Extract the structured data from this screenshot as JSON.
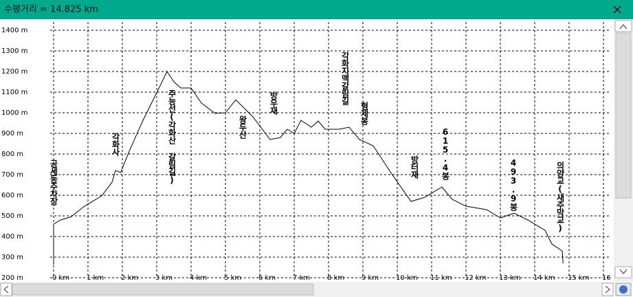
{
  "window": {
    "title": "수평거리 = 14.825 km"
  },
  "chart_data": {
    "type": "line",
    "color": "#000000",
    "grid": true,
    "x": [
      0,
      0.0,
      0.2,
      0.5,
      0.9,
      1.4,
      1.7,
      1.8,
      1.95,
      2.2,
      2.6,
      3.0,
      3.3,
      3.5,
      3.7,
      4.0,
      4.3,
      4.7,
      5.0,
      5.3,
      5.5,
      5.8,
      6.3,
      6.6,
      6.8,
      7.0,
      7.2,
      7.5,
      7.7,
      7.9,
      8.3,
      8.6,
      8.9,
      9.3,
      9.8,
      10.4,
      10.8,
      11.3,
      11.6,
      12.0,
      12.6,
      13.0,
      13.4,
      13.8,
      14.3,
      14.5,
      14.8,
      14.825
    ],
    "values": [
      263,
      460,
      480,
      495,
      547,
      597,
      663,
      720,
      710,
      813,
      963,
      1097,
      1200,
      1150,
      1120,
      1120,
      1047,
      997,
      1000,
      1063,
      1030,
      980,
      870,
      880,
      920,
      900,
      963,
      930,
      960,
      920,
      920,
      930,
      870,
      840,
      713,
      570,
      590,
      640,
      580,
      547,
      530,
      490,
      513,
      480,
      430,
      363,
      330,
      270
    ],
    "xlim": [
      -0.1,
      16.2
    ],
    "ylim": [
      200,
      1440
    ],
    "xticks": [
      {
        "value": 0,
        "label": "0 km"
      },
      {
        "value": 1,
        "label": "1 km"
      },
      {
        "value": 2,
        "label": "2 km"
      },
      {
        "value": 3,
        "label": "3 km"
      },
      {
        "value": 4,
        "label": "4 km"
      },
      {
        "value": 5,
        "label": "5 km"
      },
      {
        "value": 6,
        "label": "6 km"
      },
      {
        "value": 7,
        "label": "7 km"
      },
      {
        "value": 8,
        "label": "8 km"
      },
      {
        "value": 9,
        "label": "9 km"
      },
      {
        "value": 10,
        "label": "10 km"
      },
      {
        "value": 11,
        "label": "11 km"
      },
      {
        "value": 12,
        "label": "12 km"
      },
      {
        "value": 13,
        "label": "13 km"
      },
      {
        "value": 14,
        "label": "14 km"
      },
      {
        "value": 15,
        "label": "15 km"
      },
      {
        "value": 16,
        "label": "16"
      }
    ],
    "yticks": [
      {
        "value": 200,
        "label": "200 m"
      },
      {
        "value": 300,
        "label": "300 m"
      },
      {
        "value": 400,
        "label": "400 m"
      },
      {
        "value": 500,
        "label": "500 m"
      },
      {
        "value": 600,
        "label": "600 m"
      },
      {
        "value": 700,
        "label": "700 m"
      },
      {
        "value": 800,
        "label": "800 m"
      },
      {
        "value": 900,
        "label": "900 m"
      },
      {
        "value": 1000,
        "label": "1000 m"
      },
      {
        "value": 1100,
        "label": "1100 m"
      },
      {
        "value": 1200,
        "label": "1200 m"
      },
      {
        "value": 1300,
        "label": "1300 m"
      },
      {
        "value": 1400,
        "label": "1400 m"
      }
    ],
    "annotations": [
      "공세동주차장",
      "각화사",
      "주능선(각화산 갈림길)",
      "왕두산",
      "방우재",
      "각화지맥갈림길",
      "형제봉",
      "방터재",
      "615.4봉",
      "493.9봉",
      "의양교(새주막교)"
    ]
  }
}
